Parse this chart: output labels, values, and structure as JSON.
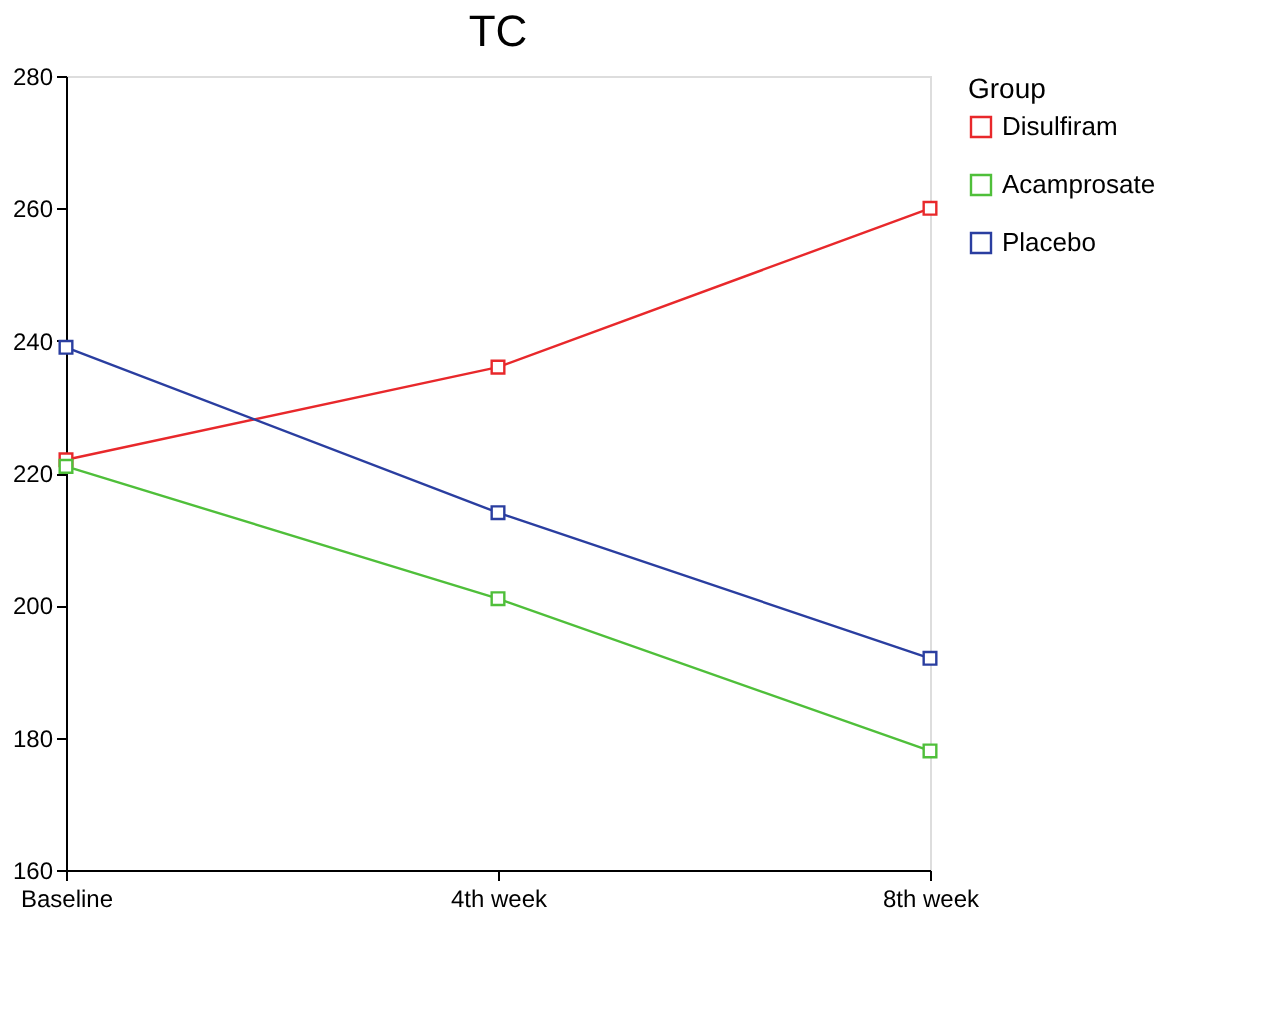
{
  "chart_data": {
    "type": "line",
    "title": "TC",
    "categories": [
      "Baseline",
      "4th week",
      "8th week"
    ],
    "series": [
      {
        "name": "Disulfiram",
        "color": "#e8282b",
        "values": [
          222,
          236,
          260
        ]
      },
      {
        "name": "Acamprosate",
        "color": "#4fbf3a",
        "values": [
          221,
          201,
          178
        ]
      },
      {
        "name": "Placebo",
        "color": "#2a3ea0",
        "values": [
          239,
          214,
          192
        ]
      }
    ],
    "legend_title": "Group",
    "legend": "right",
    "marker": "square",
    "line_style": "solid",
    "grid": false,
    "ylim": [
      160,
      280
    ],
    "yticks": [
      160,
      180,
      200,
      220,
      240,
      260,
      280
    ]
  }
}
